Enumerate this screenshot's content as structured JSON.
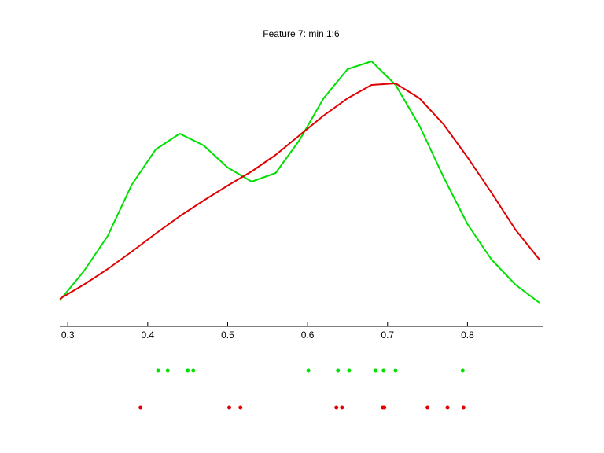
{
  "chart_data": {
    "type": "line",
    "title": "Feature 7: min 1:6",
    "x": [
      0.29,
      0.32,
      0.35,
      0.38,
      0.41,
      0.44,
      0.47,
      0.5,
      0.53,
      0.56,
      0.59,
      0.62,
      0.65,
      0.68,
      0.71,
      0.74,
      0.77,
      0.8,
      0.83,
      0.86,
      0.89
    ],
    "series": [
      {
        "color": "#00e000",
        "values": [
          0.33,
          0.7,
          1.15,
          1.8,
          2.25,
          2.45,
          2.3,
          2.02,
          1.84,
          1.95,
          2.37,
          2.9,
          3.27,
          3.37,
          3.07,
          2.55,
          1.9,
          1.3,
          0.85,
          0.53,
          0.3
        ],
        "rug": [
          0.413,
          0.425,
          0.45,
          0.457,
          0.601,
          0.638,
          0.652,
          0.685,
          0.695,
          0.71,
          0.794
        ]
      },
      {
        "color": "#e00000",
        "values": [
          0.35,
          0.53,
          0.73,
          0.95,
          1.18,
          1.4,
          1.6,
          1.79,
          1.97,
          2.18,
          2.43,
          2.68,
          2.9,
          3.07,
          3.09,
          2.9,
          2.57,
          2.15,
          1.7,
          1.23,
          0.85
        ],
        "rug": [
          0.391,
          0.502,
          0.516,
          0.636,
          0.643,
          0.694,
          0.696,
          0.75,
          0.775,
          0.795
        ]
      }
    ],
    "xlim": [
      0.29,
      0.895
    ],
    "xticks": [
      0.3,
      0.4,
      0.5,
      0.6,
      0.7,
      0.8
    ],
    "ylim": [
      0,
      3.55
    ]
  }
}
